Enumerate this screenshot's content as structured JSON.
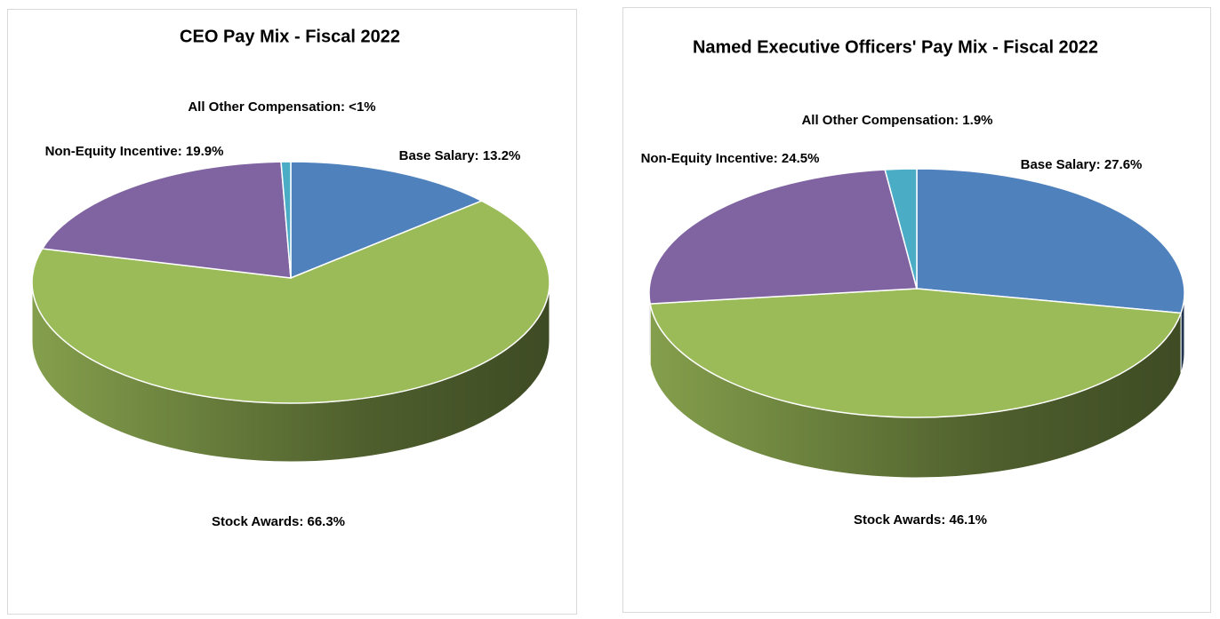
{
  "chart_data": [
    {
      "type": "pie3d",
      "title": "CEO Pay Mix - Fiscal 2022",
      "values": [
        13.2,
        66.3,
        19.9,
        0.6
      ],
      "value_labels": [
        "Base Salary: 13.2%",
        "Stock Awards: 66.3%",
        "Non-Equity Incentive: 19.9%",
        "All Other Compensation: <1%"
      ],
      "colors": [
        "#4f81bd",
        "#9bbb59",
        "#8064a2",
        "#4bacc6"
      ]
    },
    {
      "type": "pie3d",
      "title": "Named Executive Officers' Pay Mix - Fiscal 2022",
      "values": [
        27.6,
        46.1,
        24.5,
        1.9
      ],
      "value_labels": [
        "Base Salary: 27.6%",
        "Stock Awards: 46.1%",
        "Non-Equity Incentive: 24.5%",
        "All Other Compensation: 1.9%"
      ],
      "colors": [
        "#4f81bd",
        "#9bbb59",
        "#8064a2",
        "#4bacc6"
      ]
    }
  ]
}
